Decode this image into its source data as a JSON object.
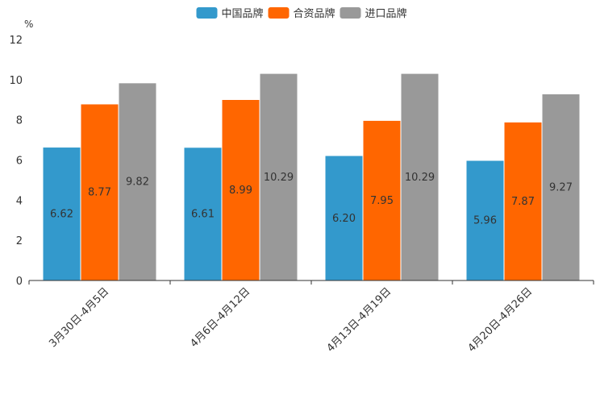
{
  "chart_data": {
    "type": "bar",
    "title": "",
    "xlabel": "",
    "ylabel": "%",
    "ylim": [
      0,
      12
    ],
    "yticks": [
      0,
      2,
      4,
      6,
      8,
      10,
      12
    ],
    "grid": false,
    "legend_position": "top-center",
    "categories": [
      "3月30日-4月5日",
      "4月6日-4月12日",
      "4月13日-4月19日",
      "4月20日-4月26日"
    ],
    "series": [
      {
        "name": "中国品牌",
        "color": "#3399cc",
        "values": [
          6.62,
          6.61,
          6.2,
          5.96
        ]
      },
      {
        "name": "合资品牌",
        "color": "#ff6600",
        "values": [
          8.77,
          8.99,
          7.95,
          7.87
        ]
      },
      {
        "name": "进口品牌",
        "color": "#999999",
        "values": [
          9.82,
          10.29,
          10.29,
          9.27
        ]
      }
    ]
  }
}
